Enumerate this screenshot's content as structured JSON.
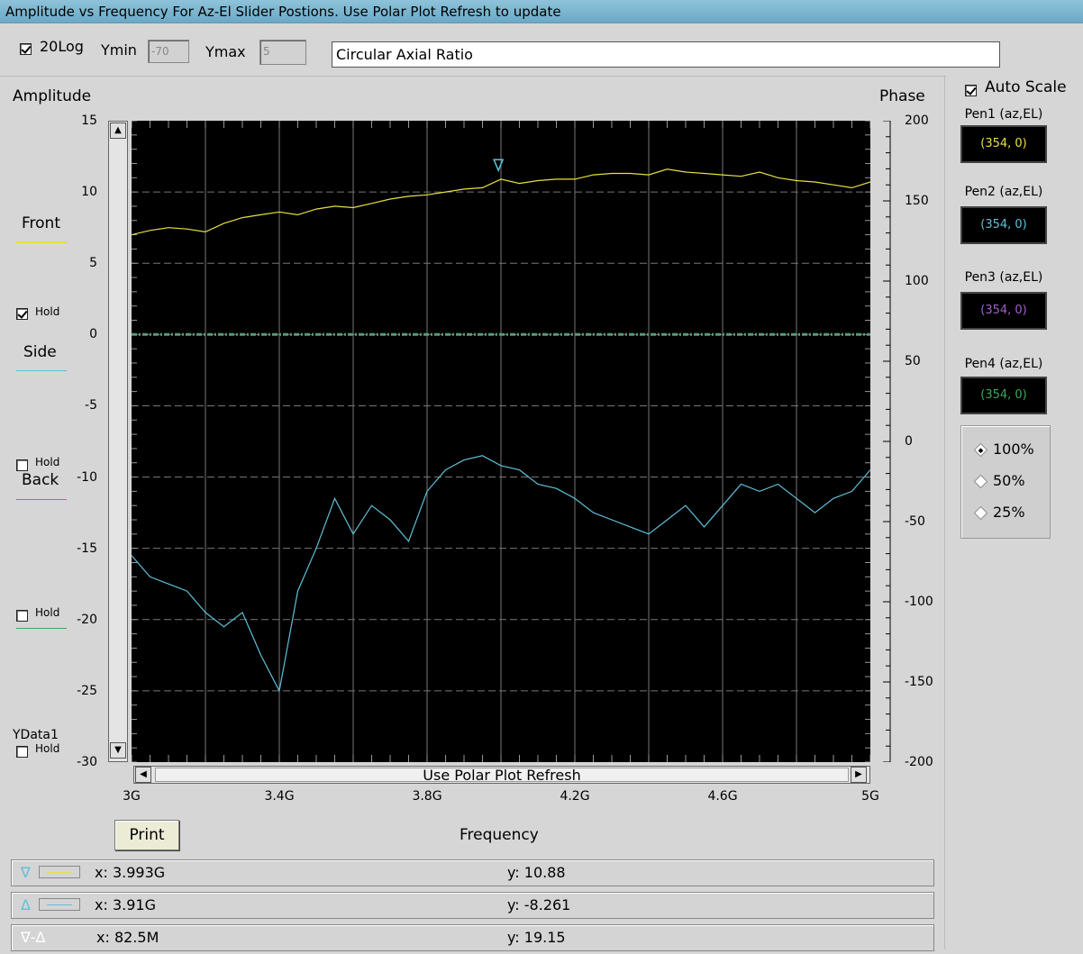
{
  "window": {
    "title": "Amplitude vs Frequency For Az-El Slider Postions. Use Polar Plot Refresh to update"
  },
  "toolbar": {
    "log_label": "20Log",
    "log_checked": true,
    "ymin_label": "Ymin",
    "ymin_value": "-70",
    "ymax_label": "Ymax",
    "ymax_value": "5",
    "measure_field": "Circular Axial Ratio"
  },
  "plot": {
    "left_axis_title": "Amplitude",
    "right_axis_title": "Phase",
    "x_axis_title": "Frequency",
    "scrollbar_label": "Use Polar Plot Refresh",
    "left_ticks": [
      "15",
      "10",
      "5",
      "0",
      "-5",
      "-10",
      "-15",
      "-20",
      "-25",
      "-30"
    ],
    "right_ticks": [
      "200",
      "150",
      "100",
      "50",
      "0",
      "-50",
      "-100",
      "-150",
      "-200"
    ],
    "x_ticks": [
      "3G",
      "3.4G",
      "3.8G",
      "4.2G",
      "4.6G",
      "5G"
    ]
  },
  "legend": {
    "traces": [
      {
        "name": "Front",
        "color": "#e6e040"
      },
      {
        "name": "Side",
        "color": "#5fc0d8"
      },
      {
        "name": "Back",
        "color": "#c060a0"
      },
      {
        "name": "",
        "color": "#3aa860"
      }
    ],
    "hold_label": "Hold",
    "hold_states": [
      true,
      false,
      false,
      false
    ],
    "ydata_label": "YData1"
  },
  "right_panel": {
    "auto_scale_label": "Auto Scale",
    "auto_scale_checked": true,
    "pens": [
      {
        "label": "Pen1 (az,EL)",
        "value": "(354, 0)",
        "color": "#e6e040"
      },
      {
        "label": "Pen2 (az,EL)",
        "value": "(354, 0)",
        "color": "#5fc0d8"
      },
      {
        "label": "Pen3 (az,EL)",
        "value": "(354, 0)",
        "color": "#a060c8"
      },
      {
        "label": "Pen4 (az,EL)",
        "value": "(354, 0)",
        "color": "#3aa860"
      }
    ],
    "zoom_options": [
      "100%",
      "50%",
      "25%"
    ],
    "zoom_selected": "100%"
  },
  "print_label": "Print",
  "cursors": [
    {
      "symbol": "∇",
      "x": "x: 3.993G",
      "y": "y: 10.88",
      "color": "#e6e040"
    },
    {
      "symbol": "Δ",
      "x": "x: 3.91G",
      "y": "y: -8.261",
      "color": "#5fc0d8"
    },
    {
      "symbol": "∇-Δ",
      "x": "x: 82.5M",
      "y": "y: 19.15",
      "color": ""
    }
  ],
  "chart_data": {
    "type": "line",
    "xlabel": "Frequency",
    "ylabel": "Amplitude",
    "y2label": "Phase",
    "xlim": [
      3.0,
      5.0
    ],
    "ylim": [
      -30,
      15
    ],
    "y2lim": [
      -200,
      200
    ],
    "x_unit": "GHz",
    "grid": true,
    "series": [
      {
        "name": "Front",
        "color": "#e6e040",
        "x": [
          3.0,
          3.05,
          3.1,
          3.15,
          3.2,
          3.25,
          3.3,
          3.35,
          3.4,
          3.45,
          3.5,
          3.55,
          3.6,
          3.65,
          3.7,
          3.75,
          3.8,
          3.85,
          3.9,
          3.95,
          4.0,
          4.05,
          4.1,
          4.15,
          4.2,
          4.25,
          4.3,
          4.35,
          4.4,
          4.45,
          4.5,
          4.55,
          4.6,
          4.65,
          4.7,
          4.75,
          4.8,
          4.85,
          4.9,
          4.95,
          5.0
        ],
        "y": [
          7.0,
          7.3,
          7.5,
          7.4,
          7.2,
          7.8,
          8.2,
          8.4,
          8.6,
          8.4,
          8.8,
          9.0,
          8.9,
          9.2,
          9.5,
          9.7,
          9.8,
          10.0,
          10.2,
          10.3,
          10.9,
          10.6,
          10.8,
          10.9,
          10.9,
          11.2,
          11.3,
          11.3,
          11.2,
          11.6,
          11.4,
          11.3,
          11.2,
          11.1,
          11.4,
          11.0,
          10.8,
          10.7,
          10.5,
          10.3,
          10.7
        ]
      },
      {
        "name": "Side",
        "color": "#5fc0d8",
        "x": [
          3.0,
          3.05,
          3.1,
          3.15,
          3.2,
          3.25,
          3.3,
          3.35,
          3.4,
          3.45,
          3.5,
          3.55,
          3.6,
          3.65,
          3.7,
          3.75,
          3.8,
          3.85,
          3.9,
          3.95,
          4.0,
          4.05,
          4.1,
          4.15,
          4.2,
          4.25,
          4.3,
          4.35,
          4.4,
          4.45,
          4.5,
          4.55,
          4.6,
          4.65,
          4.7,
          4.75,
          4.8,
          4.85,
          4.9,
          4.95,
          5.0
        ],
        "y": [
          -15.5,
          -17.0,
          -17.5,
          -18.0,
          -19.5,
          -20.5,
          -19.5,
          -22.5,
          -25.0,
          -18.0,
          -15.0,
          -11.5,
          -14.0,
          -12.0,
          -13.0,
          -14.5,
          -11.0,
          -9.5,
          -8.8,
          -8.5,
          -9.2,
          -9.5,
          -10.5,
          -10.8,
          -11.5,
          -12.5,
          -13.0,
          -13.5,
          -14.0,
          -13.0,
          -12.0,
          -13.5,
          -12.0,
          -10.5,
          -11.0,
          -10.5,
          -11.5,
          -12.5,
          -11.5,
          -11.0,
          -9.5
        ]
      },
      {
        "name": "",
        "color": "#5a9a78",
        "x": [
          3.0,
          5.0
        ],
        "y": [
          0,
          0
        ]
      }
    ],
    "markers": [
      {
        "type": "delta-down",
        "x": 3.993,
        "y": 10.88,
        "color": "#5fc0d8"
      }
    ]
  }
}
